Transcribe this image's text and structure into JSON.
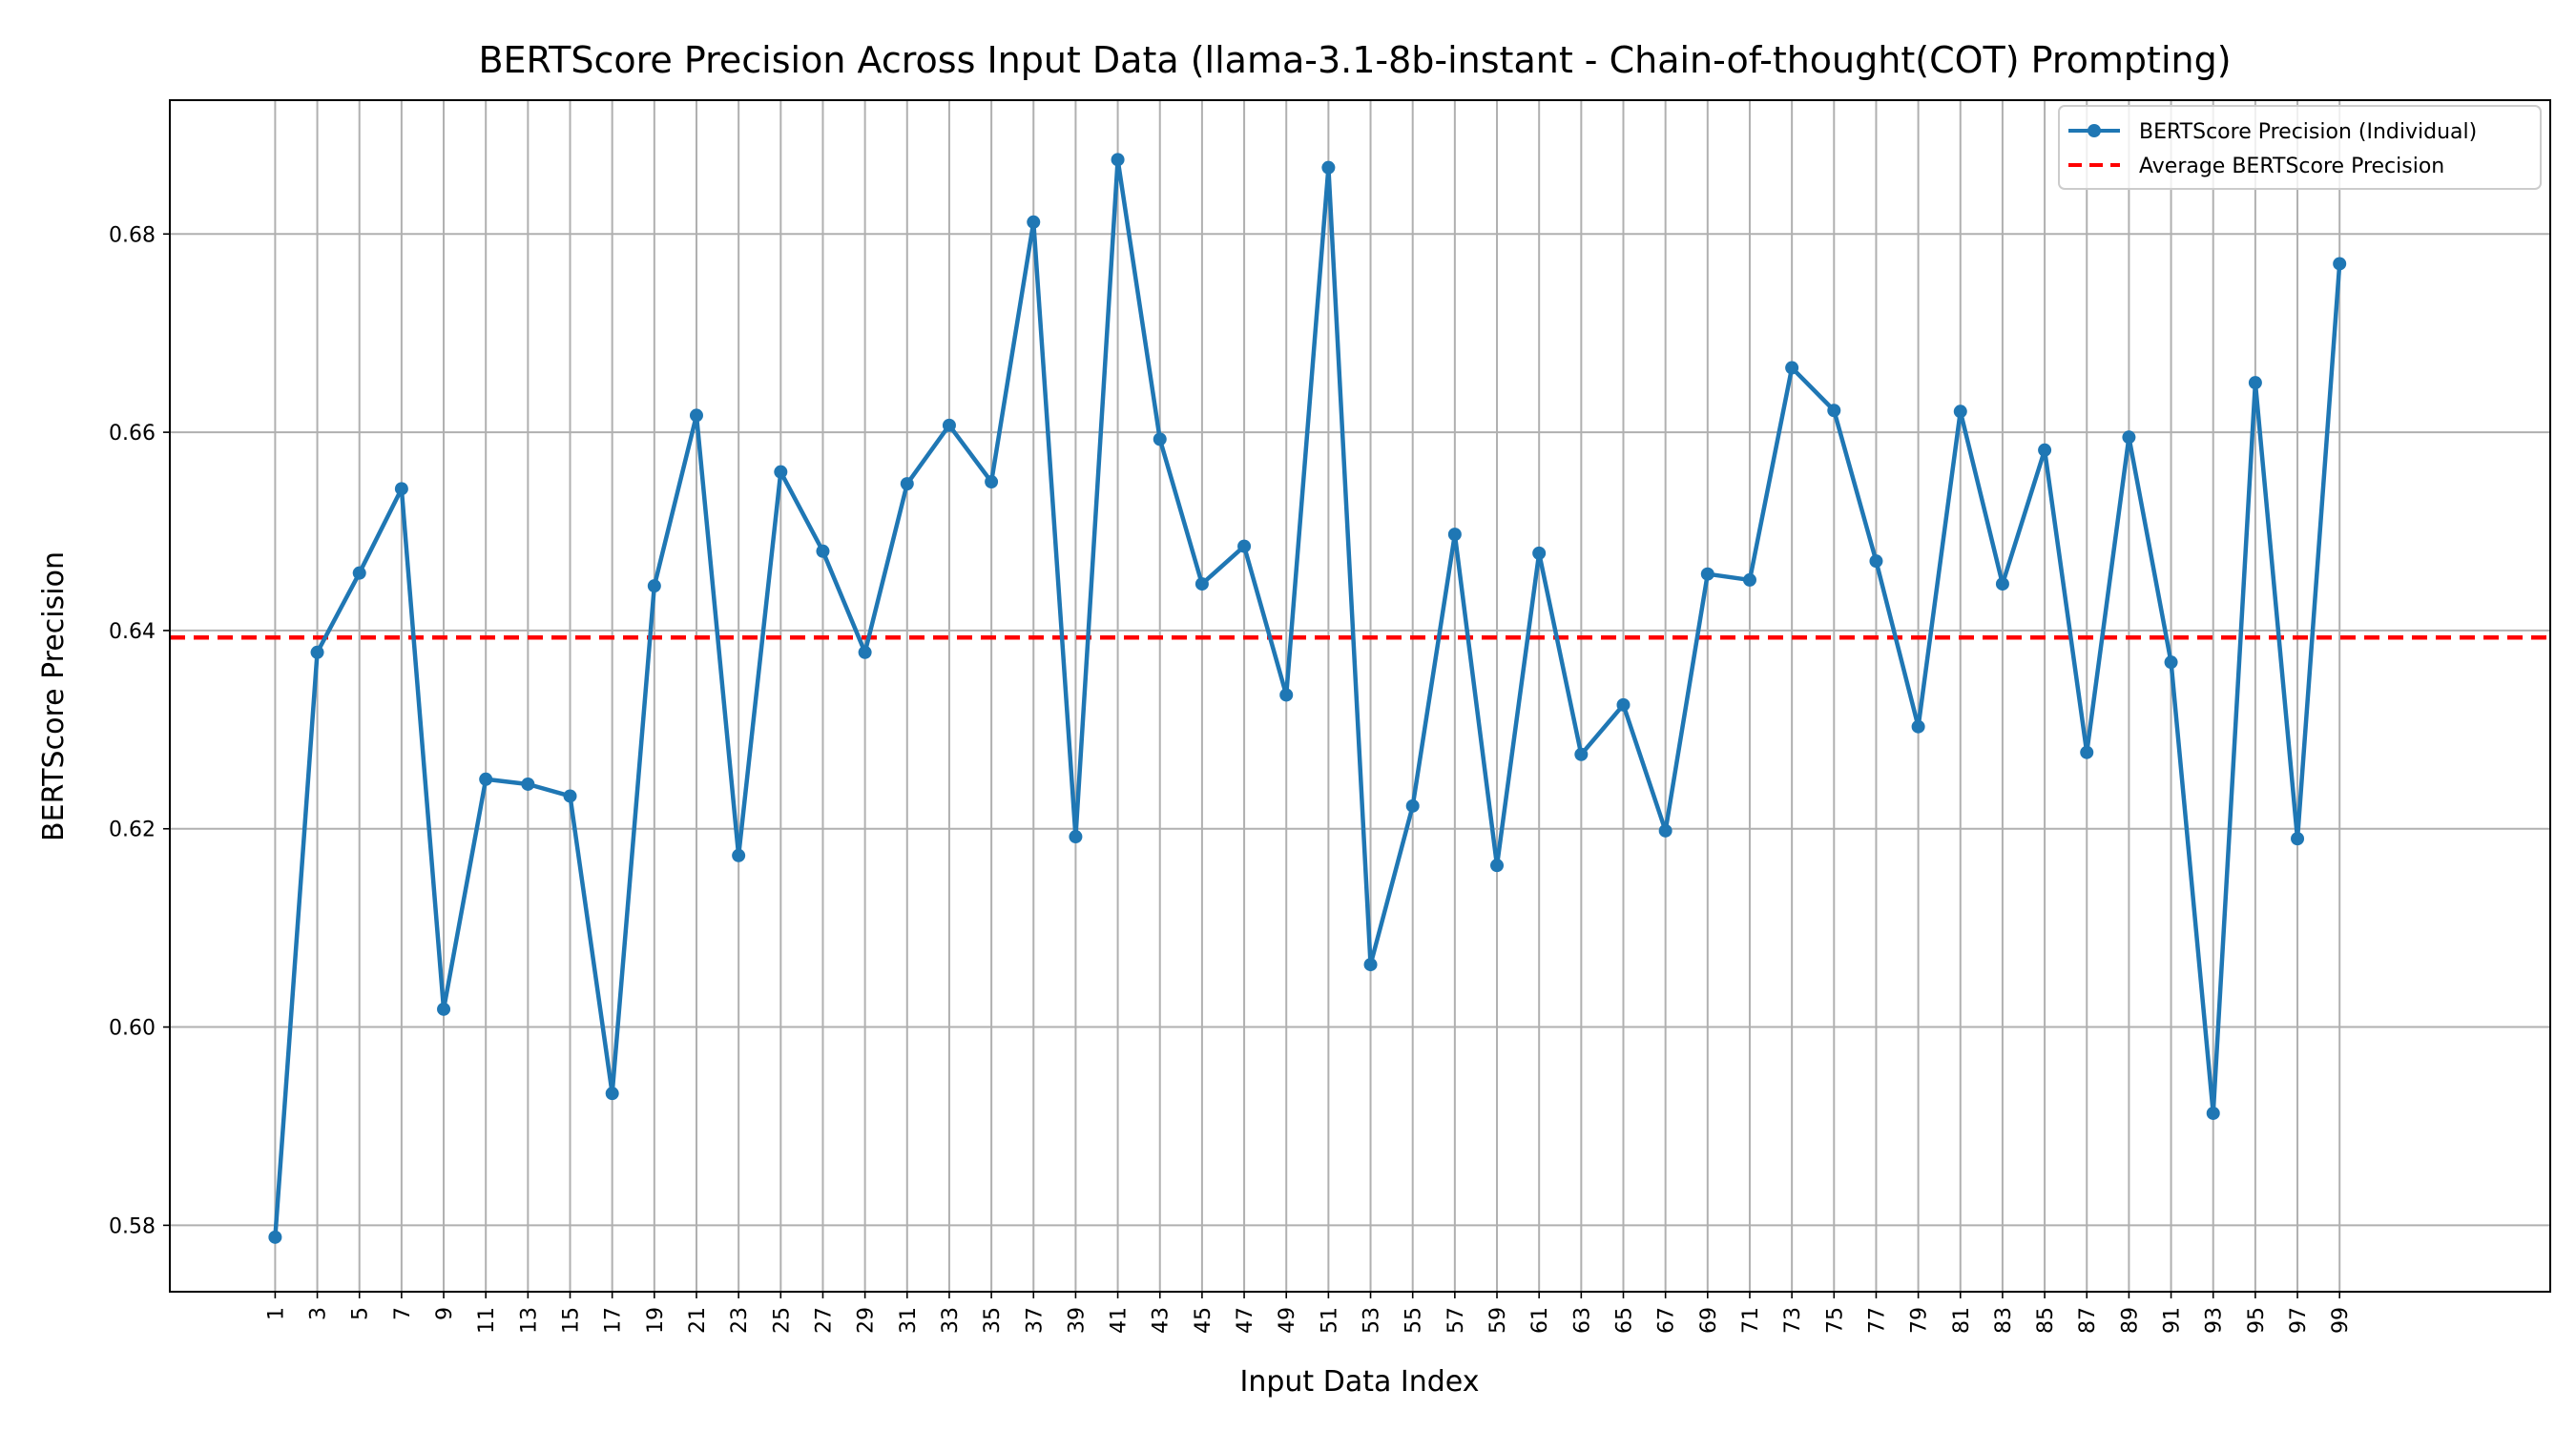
{
  "chart_data": {
    "type": "line",
    "title": "BERTScore Precision Across Input Data (llama-3.1-8b-instant - Chain-of-thought(COT) Prompting)",
    "xlabel": "Input Data Index",
    "ylabel": "BERTScore Precision",
    "xlim": [
      -4,
      109
    ],
    "ylim": [
      0.5733,
      0.6935
    ],
    "x_ticks": [
      1,
      3,
      5,
      7,
      9,
      11,
      13,
      15,
      17,
      19,
      21,
      23,
      25,
      27,
      29,
      31,
      33,
      35,
      37,
      39,
      41,
      43,
      45,
      47,
      49,
      51,
      53,
      55,
      57,
      59,
      61,
      63,
      65,
      67,
      69,
      71,
      73,
      75,
      77,
      79,
      81,
      83,
      85,
      87,
      89,
      91,
      93,
      95,
      97,
      99
    ],
    "y_ticks": [
      0.58,
      0.6,
      0.62,
      0.64,
      0.66,
      0.68
    ],
    "y_tick_labels": [
      "0.58",
      "0.60",
      "0.62",
      "0.64",
      "0.66",
      "0.68"
    ],
    "grid": true,
    "legend_position": "top-right",
    "series": [
      {
        "name": "BERTScore Precision (Individual)",
        "color": "#1f77b4",
        "style": "line-with-markers",
        "x": [
          1,
          3,
          5,
          7,
          9,
          11,
          13,
          15,
          17,
          19,
          21,
          23,
          25,
          27,
          29,
          31,
          33,
          35,
          37,
          39,
          41,
          43,
          45,
          47,
          49,
          51,
          53,
          55,
          57,
          59,
          61,
          63,
          65,
          67,
          69,
          71,
          73,
          75,
          77,
          79,
          81,
          83,
          85,
          87,
          89,
          91,
          93,
          95,
          97,
          99
        ],
        "values": [
          0.5788,
          0.6378,
          0.6458,
          0.6543,
          0.6018,
          0.625,
          0.6245,
          0.6233,
          0.5933,
          0.6445,
          0.6617,
          0.6173,
          0.656,
          0.648,
          0.6378,
          0.6548,
          0.6607,
          0.655,
          0.6812,
          0.6192,
          0.6875,
          0.6593,
          0.6447,
          0.6485,
          0.6335,
          0.6867,
          0.6063,
          0.6223,
          0.6497,
          0.6163,
          0.6478,
          0.6275,
          0.6325,
          0.6198,
          0.6457,
          0.6451,
          0.6665,
          0.6622,
          0.647,
          0.6303,
          0.6621,
          0.6447,
          0.6582,
          0.6277,
          0.6595,
          0.6368,
          0.5913,
          0.665,
          0.619,
          0.677
        ]
      },
      {
        "name": "Average BERTScore Precision",
        "color": "#ff0000",
        "style": "dashed-horizontal",
        "value": 0.6393
      }
    ]
  }
}
